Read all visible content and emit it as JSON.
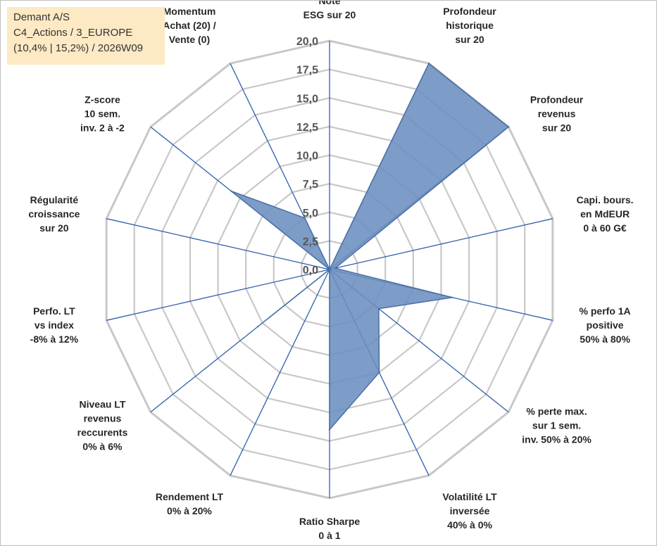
{
  "info_box": {
    "lines": [
      "Demant A/S",
      "C4_Actions / 3_EUROPE",
      "(10,4% | 15,2%) / 2026W09"
    ],
    "background": "#fde9c4"
  },
  "chart_data": {
    "type": "radar",
    "title": "",
    "r_range": [
      0,
      20
    ],
    "r_ticks": [
      "0,0",
      "2,5",
      "5,0",
      "7,5",
      "10,0",
      "12,5",
      "15,0",
      "17,5",
      "20,0"
    ],
    "grid": true,
    "grid_shape": "polygon",
    "axes": [
      {
        "label": [
          "Note",
          "ESG sur 20"
        ],
        "value": 0
      },
      {
        "label": [
          "Profondeur",
          "historique",
          "sur 20"
        ],
        "value": 20
      },
      {
        "label": [
          "Profondeur",
          "revenus",
          "sur 20"
        ],
        "value": 20
      },
      {
        "label": [
          "Capi. bours.",
          "en MdEUR",
          "0 à 60 G€"
        ],
        "value": 0.5
      },
      {
        "label": [
          "% perfo 1A",
          "positive",
          "50% à 80%"
        ],
        "value": 11
      },
      {
        "label": [
          "% perte max.",
          "sur 1 sem.",
          "inv. 50% à 20%"
        ],
        "value": 5.5
      },
      {
        "label": [
          "Volatilité LT",
          "inversée",
          "40% à 0%"
        ],
        "value": 10
      },
      {
        "label": [
          "Ratio Sharpe",
          "0 à 1"
        ],
        "value": 14
      },
      {
        "label": [
          "Rendement LT",
          "0% à 20%"
        ],
        "value": 0
      },
      {
        "label": [
          "Niveau LT",
          "revenus",
          "reccurents",
          "0% à 6%"
        ],
        "value": 8
      },
      {
        "label": [
          "Perfo. LT",
          "vs index",
          "-8% à 12%"
        ],
        "value": 0
      },
      {
        "label": [
          "Régularité",
          "croissance",
          "sur 20"
        ],
        "value": 0
      },
      {
        "label": [
          "Z-score",
          "10 sem.",
          "inv. 2 à -2"
        ],
        "value": 11
      },
      {
        "label": [
          "Momentum",
          "Achat (20) /",
          "Vente (0)"
        ],
        "value": 5
      }
    ],
    "colors": {
      "fill": "#6b8ebf",
      "stroke": "#4a6fa5",
      "spoke": "#2e5fae",
      "grid": "#c8c8c8"
    }
  }
}
